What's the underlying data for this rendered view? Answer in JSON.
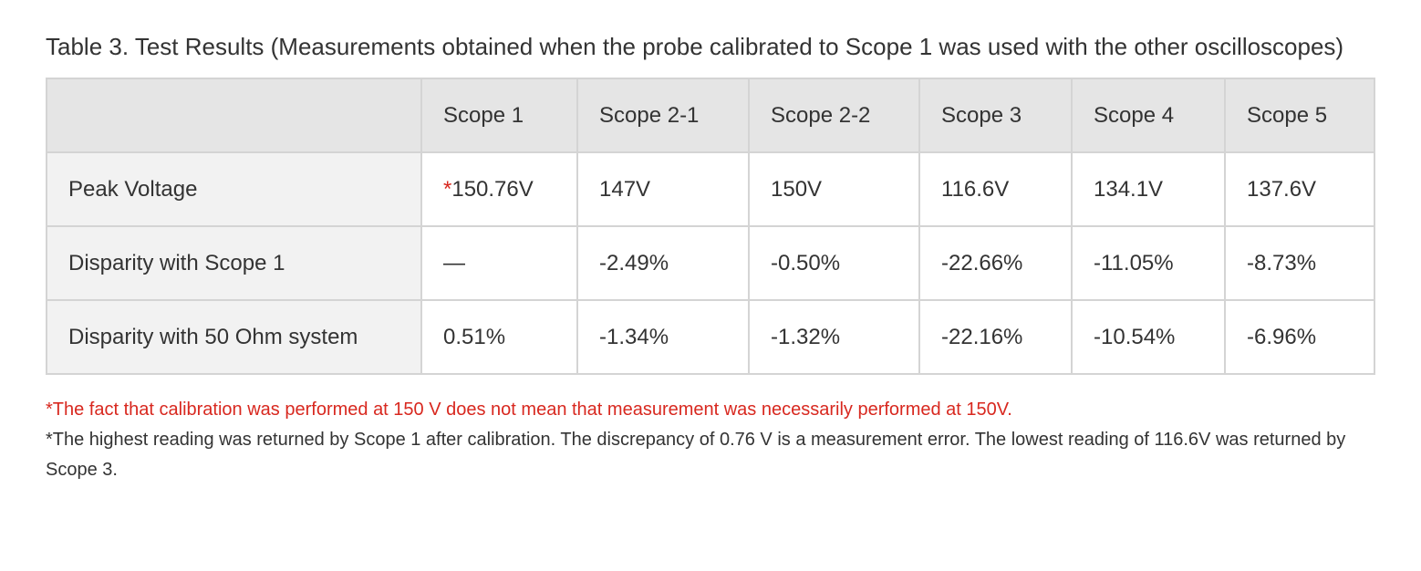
{
  "caption": "Table 3. Test Results (Measurements obtained when the probe calibrated to Scope 1 was used with the other oscilloscopes)",
  "table": {
    "header": [
      null,
      "Scope 1",
      "Scope 2-1",
      "Scope 2-2",
      "Scope 3",
      "Scope 4",
      "Scope 5"
    ],
    "rows": [
      [
        "Peak Voltage",
        {
          "note_mark": "*",
          "text": "150.76V"
        },
        "147V",
        "150V",
        "116.6V",
        "134.1V",
        "137.6V"
      ],
      [
        "Disparity with Scope 1",
        "—",
        "-2.49%",
        "-0.50%",
        "-22.66%",
        "-11.05%",
        "-8.73%"
      ],
      [
        "Disparity with 50 Ohm system",
        "0.51%",
        "-1.34%",
        "-1.32%",
        "-22.16%",
        "-10.54%",
        "-6.96%"
      ]
    ]
  },
  "notes": [
    "*The fact that calibration was performed at 150 V does not mean that measurement was necessarily performed at 150V.",
    "*The highest reading was returned by Scope 1 after calibration. The discrepancy of 0.76 V is a measurement error. The lowest reading of 116.6V was returned by Scope 3."
  ]
}
